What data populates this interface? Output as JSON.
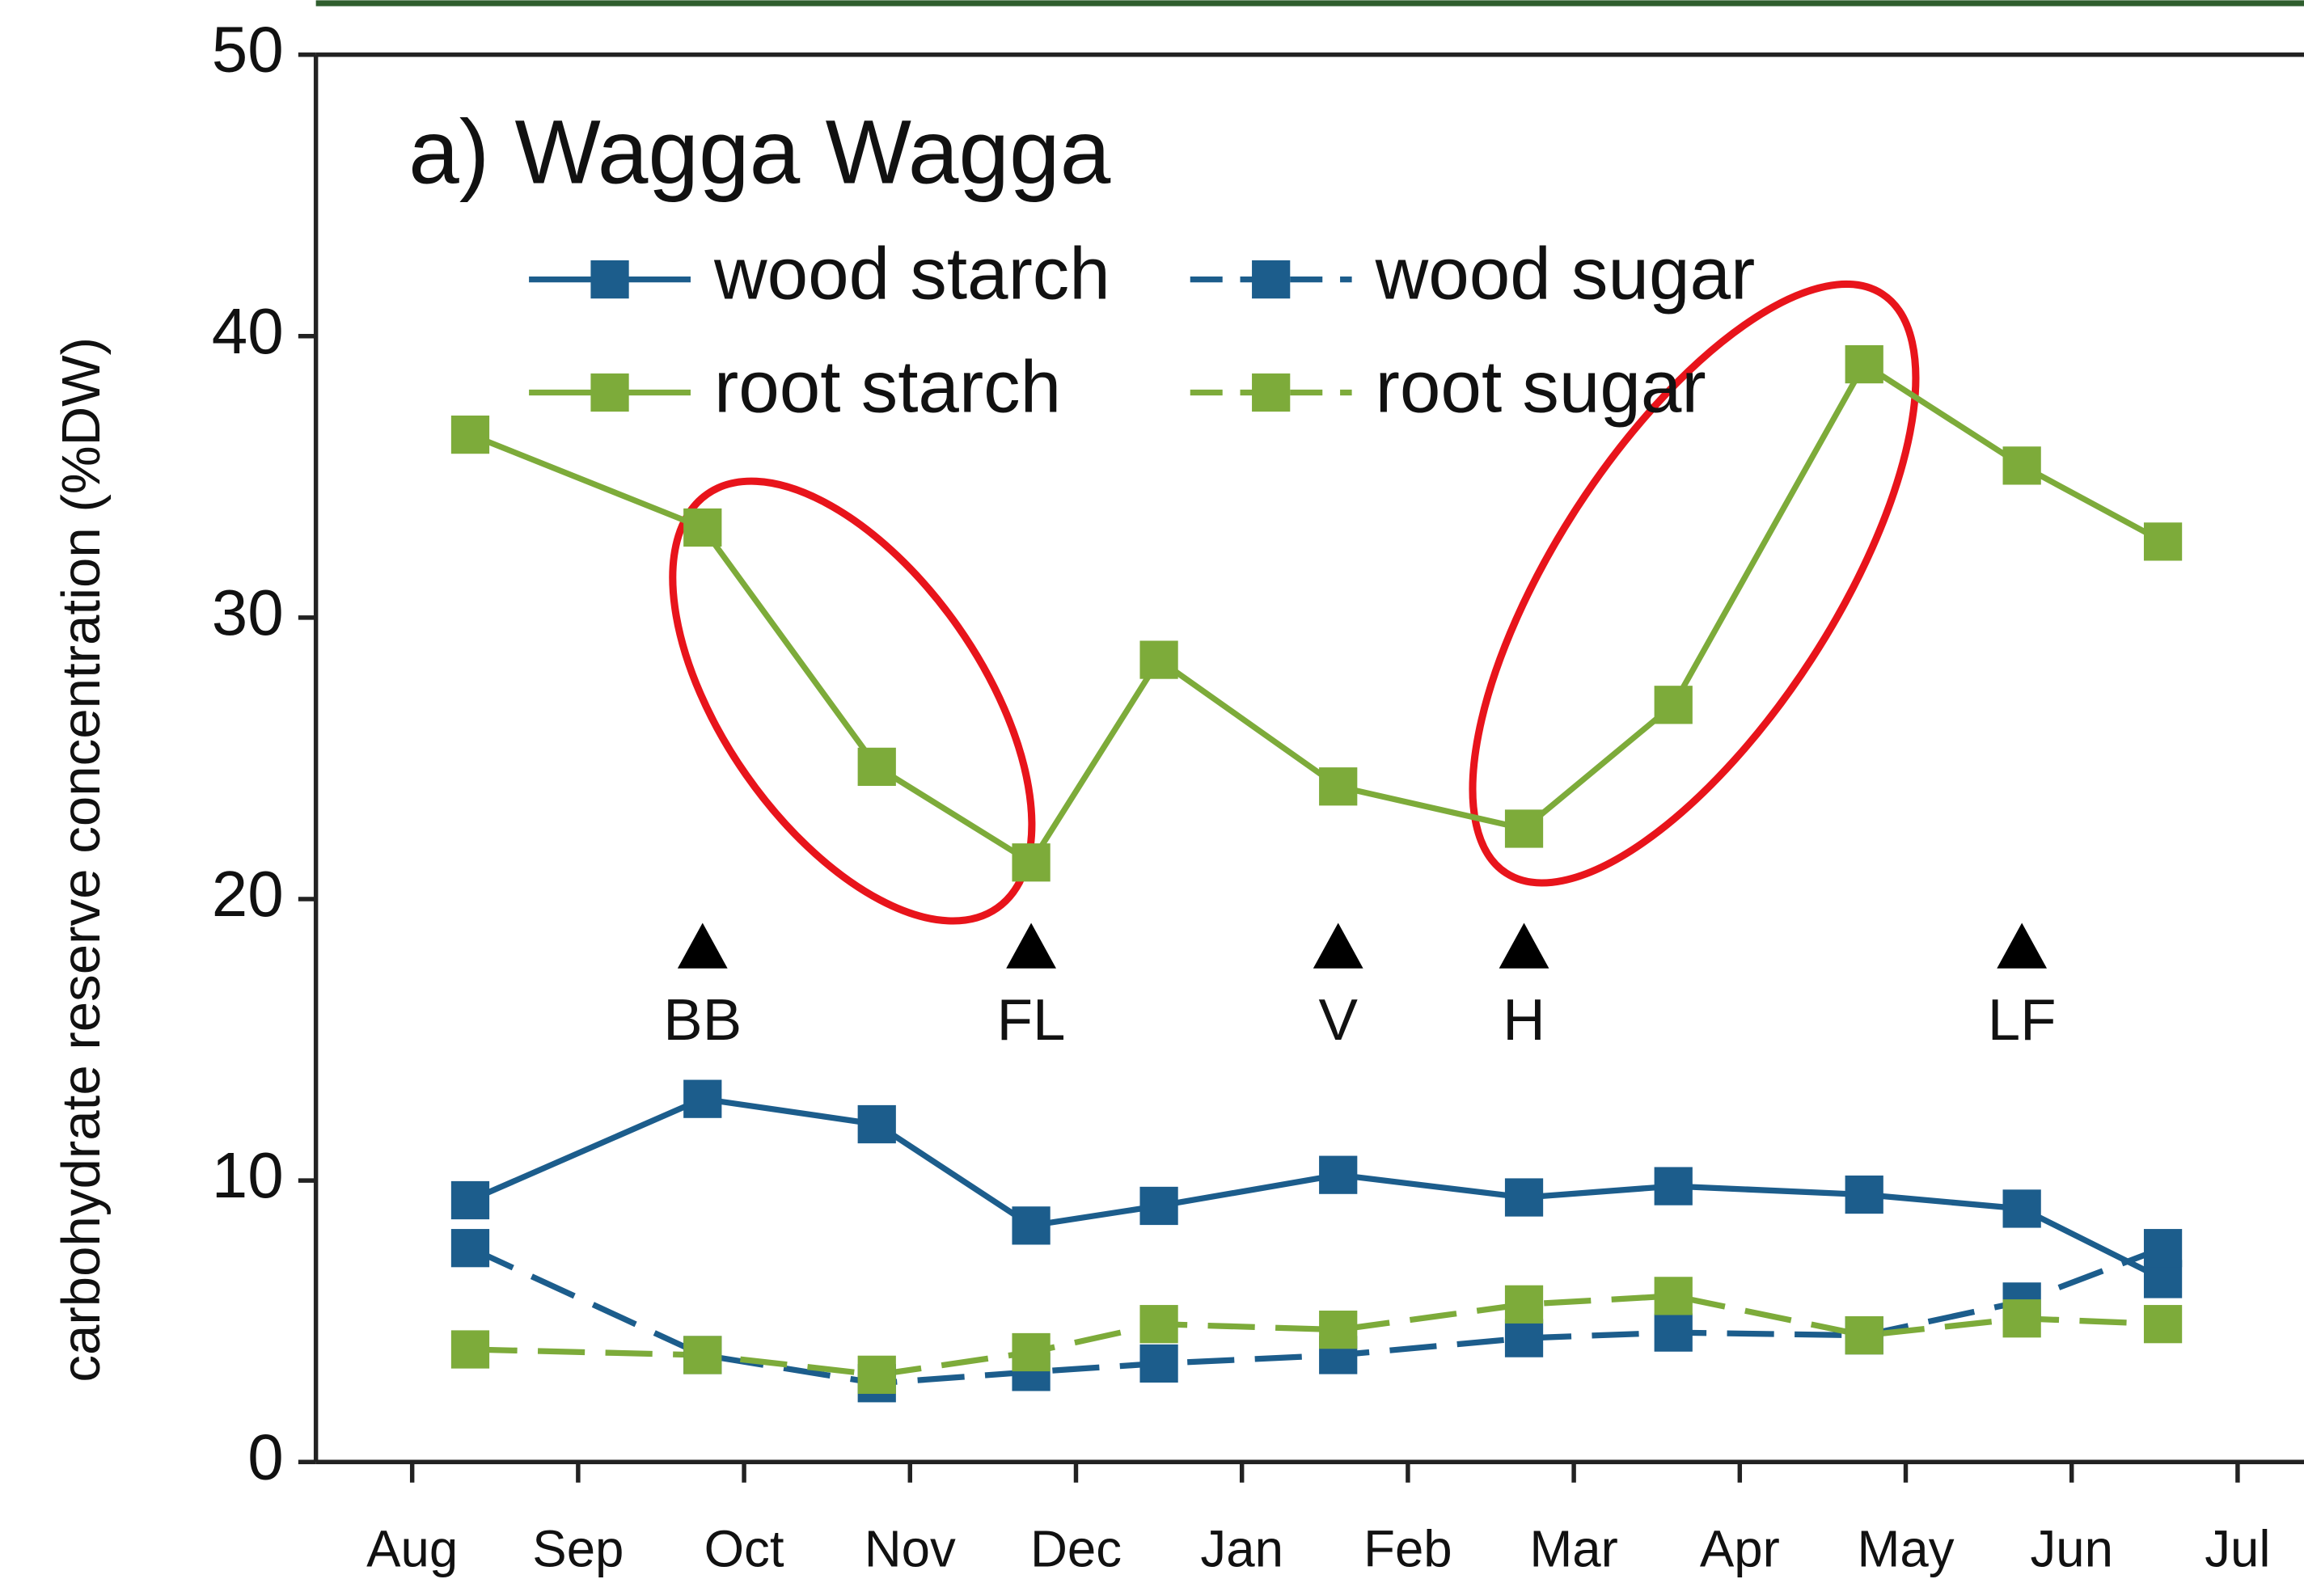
{
  "chart_data": {
    "type": "line",
    "title": "a) Wagga Wagga",
    "y_label": "carbohydrate reserve concentration (%DW)",
    "x": [
      0.35,
      1.75,
      2.8,
      3.73,
      4.5,
      5.58,
      6.7,
      7.6,
      8.75,
      9.7,
      10.55
    ],
    "xlim": [
      -0.58,
      11.4
    ],
    "xticks": [
      {
        "value": 0,
        "label": "Aug"
      },
      {
        "value": 1,
        "label": "Sep"
      },
      {
        "value": 2,
        "label": "Oct"
      },
      {
        "value": 3,
        "label": "Nov"
      },
      {
        "value": 4,
        "label": "Dec"
      },
      {
        "value": 5,
        "label": "Jan"
      },
      {
        "value": 6,
        "label": "Feb"
      },
      {
        "value": 7,
        "label": "Mar"
      },
      {
        "value": 8,
        "label": "Apr"
      },
      {
        "value": 9,
        "label": "May"
      },
      {
        "value": 10,
        "label": "Jun"
      },
      {
        "value": 11,
        "label": "Jul"
      }
    ],
    "ylim": [
      0,
      50
    ],
    "yticks": [
      0,
      10,
      20,
      30,
      40,
      50
    ],
    "series": [
      {
        "name": "wood starch",
        "color": "#1c5d8c",
        "linestyle": "solid",
        "values": [
          9.3,
          12.9,
          12.0,
          8.4,
          9.1,
          10.2,
          9.4,
          9.8,
          9.5,
          9.0,
          6.5
        ]
      },
      {
        "name": "wood sugar",
        "color": "#1c5d8c",
        "linestyle": "dashed",
        "values": [
          7.6,
          3.8,
          2.8,
          3.2,
          3.5,
          3.8,
          4.4,
          4.6,
          4.5,
          5.7,
          7.6
        ]
      },
      {
        "name": "root starch",
        "color": "#7dab3a",
        "linestyle": "solid",
        "values": [
          36.5,
          33.2,
          24.7,
          21.3,
          28.5,
          24.0,
          22.5,
          26.9,
          39.0,
          35.4,
          32.7
        ]
      },
      {
        "name": "root sugar",
        "color": "#7dab3a",
        "linestyle": "dashed",
        "values": [
          4.0,
          3.8,
          3.1,
          3.9,
          4.9,
          4.7,
          5.6,
          5.9,
          4.5,
          5.1,
          4.9
        ]
      }
    ],
    "annotations": [
      {
        "label": "BB",
        "x": 1.75
      },
      {
        "label": "FL",
        "x": 3.73
      },
      {
        "label": "V",
        "x": 5.58
      },
      {
        "label": "H",
        "x": 6.7
      },
      {
        "label": "LF",
        "x": 9.7
      }
    ]
  }
}
